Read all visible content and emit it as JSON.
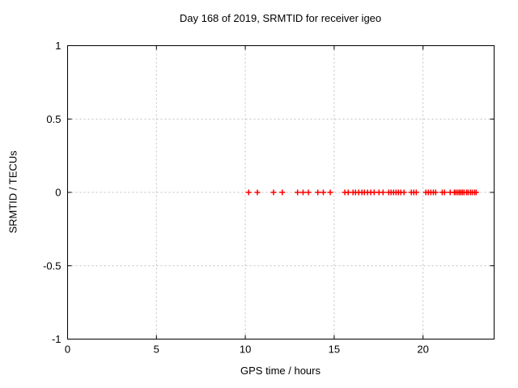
{
  "chart_data": {
    "type": "scatter",
    "title": "Day 168 of 2019, SRMTID for receiver igeo",
    "xlabel": "GPS time / hours",
    "ylabel": "SRMTID / TECUs",
    "xlim": [
      0,
      24
    ],
    "ylim": [
      -1,
      1
    ],
    "xticks": [
      0,
      5,
      10,
      15,
      20
    ],
    "yticks": [
      -1,
      -0.5,
      0,
      0.5,
      1
    ],
    "grid": true,
    "legend_position": "none",
    "marker": "plus",
    "marker_color": "#ff0000",
    "grid_color": "#c0c0c0",
    "border_color": "#000000",
    "background_color": "#ffffff",
    "series": [
      {
        "name": "SRMTID",
        "points": [
          [
            10.19,
            0
          ],
          [
            10.68,
            0
          ],
          [
            11.59,
            0
          ],
          [
            12.08,
            0
          ],
          [
            12.94,
            0
          ],
          [
            13.25,
            0
          ],
          [
            13.55,
            0
          ],
          [
            14.08,
            0
          ],
          [
            14.39,
            0
          ],
          [
            14.78,
            0
          ],
          [
            15.6,
            0
          ],
          [
            15.79,
            0
          ],
          [
            16.06,
            0
          ],
          [
            16.2,
            0
          ],
          [
            16.38,
            0
          ],
          [
            16.56,
            0
          ],
          [
            16.7,
            0
          ],
          [
            16.88,
            0
          ],
          [
            17.06,
            0
          ],
          [
            17.25,
            0
          ],
          [
            17.52,
            0
          ],
          [
            17.75,
            0
          ],
          [
            18.07,
            0
          ],
          [
            18.2,
            0
          ],
          [
            18.34,
            0
          ],
          [
            18.48,
            0
          ],
          [
            18.61,
            0
          ],
          [
            18.75,
            0
          ],
          [
            18.93,
            0
          ],
          [
            19.34,
            0
          ],
          [
            19.48,
            0
          ],
          [
            19.62,
            0
          ],
          [
            20.16,
            0
          ],
          [
            20.3,
            0
          ],
          [
            20.44,
            0
          ],
          [
            20.58,
            0
          ],
          [
            20.71,
            0
          ],
          [
            21.08,
            0
          ],
          [
            21.21,
            0
          ],
          [
            21.53,
            0
          ],
          [
            21.76,
            0
          ],
          [
            21.85,
            0
          ],
          [
            21.95,
            0
          ],
          [
            22.04,
            0
          ],
          [
            22.13,
            0
          ],
          [
            22.22,
            0
          ],
          [
            22.31,
            0
          ],
          [
            22.45,
            0
          ],
          [
            22.54,
            0
          ],
          [
            22.67,
            0
          ],
          [
            22.77,
            0
          ],
          [
            22.9,
            0
          ],
          [
            22.99,
            0
          ]
        ]
      }
    ]
  }
}
